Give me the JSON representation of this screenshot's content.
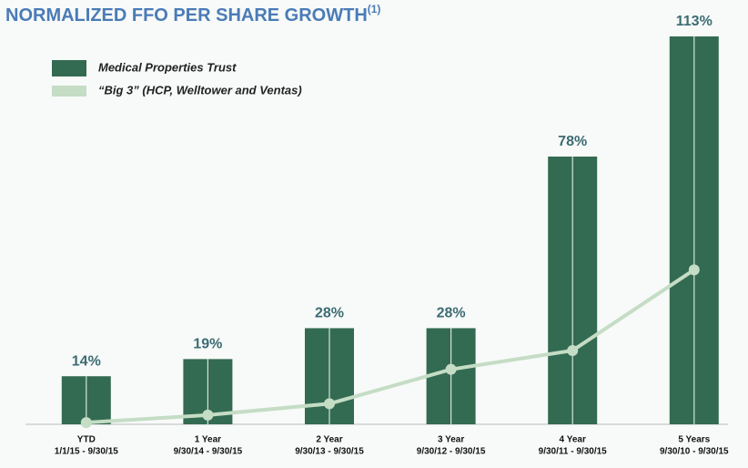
{
  "chart_data": {
    "type": "bar+line",
    "title": "NORMALIZED FFO PER SHARE GROWTH",
    "title_superscript": "(1)",
    "categories": [
      [
        "YTD",
        "1/1/15 - 9/30/15"
      ],
      [
        "1 Year",
        "9/30/14 - 9/30/15"
      ],
      [
        "2 Year",
        "9/30/13 - 9/30/15"
      ],
      [
        "3 Year",
        "9/30/12 - 9/30/15"
      ],
      [
        "4 Year",
        "9/30/11 - 9/30/15"
      ],
      [
        "5 Years",
        "9/30/10 - 9/30/15"
      ]
    ],
    "series": [
      {
        "name": "Medical Properties Trust",
        "type": "bar",
        "color": "#336b52",
        "values": [
          14,
          19,
          28,
          28,
          78,
          113
        ],
        "value_labels": [
          "14%",
          "19%",
          "28%",
          "28%",
          "78%",
          "113%"
        ]
      },
      {
        "name": "“Big 3” (HCP, Welltower and Ventas)",
        "type": "line",
        "color": "#c5dcc5",
        "values": [
          0.5,
          2.7,
          6,
          16,
          21.5,
          45
        ]
      }
    ],
    "ylim": [
      0,
      113
    ],
    "legend": "top-left"
  }
}
